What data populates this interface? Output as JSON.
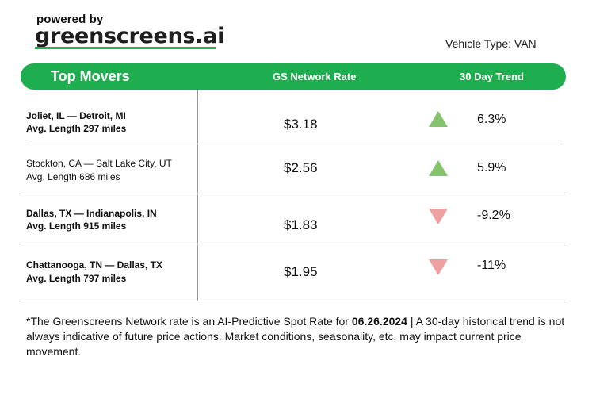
{
  "header": {
    "powered_by": "powered by",
    "brand": "greenscreens.ai",
    "vehicle_type": "Vehicle Type: VAN"
  },
  "table": {
    "title": "Top Movers",
    "col_rate": "GS Network Rate",
    "col_trend": "30 Day Trend",
    "rows": [
      {
        "lane": "Joliet, IL — Detroit, MI",
        "length": "Avg. Length 297 miles",
        "rate": "$3.18",
        "trend": "6.3%",
        "direction": "up"
      },
      {
        "lane": "Stockton, CA — Salt Lake City, UT",
        "length": "Avg. Length 686 miles",
        "rate": "$2.56",
        "trend": "5.9%",
        "direction": "up"
      },
      {
        "lane": "Dallas, TX — Indianapolis, IN",
        "length": "Avg. Length 915 miles",
        "rate": "$1.83",
        "trend": "-9.2%",
        "direction": "down"
      },
      {
        "lane": "Chattanooga, TN — Dallas, TX",
        "length": "Avg. Length 797 miles",
        "rate": "$1.95",
        "trend": "-11%",
        "direction": "down"
      }
    ]
  },
  "footnote": {
    "before": "*The Greenscreens Network rate is an AI-Predictive Spot Rate for ",
    "date": "06.26.2024",
    "after": " | A 30-day historical trend is not always indicative of future price actions. Market conditions, seasonality, etc. may impact current price movement."
  },
  "colors": {
    "brand_green": "#1fae4f",
    "up_triangle": "#86c36e",
    "down_triangle": "#f1a0a0"
  }
}
